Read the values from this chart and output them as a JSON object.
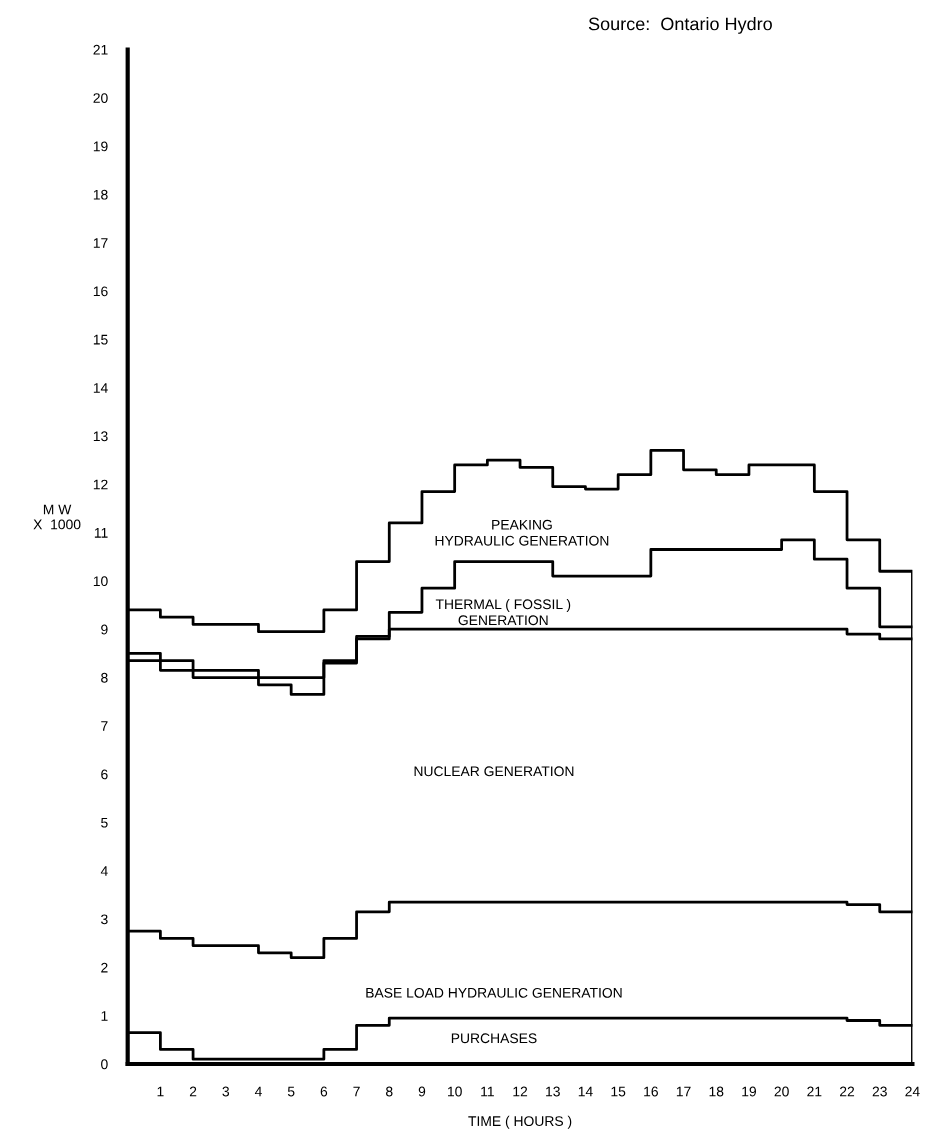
{
  "chart_data": {
    "type": "step",
    "xlabel": "TIME ( HOURS )",
    "ylabel": "M W\nX  1000",
    "x": [
      0,
      1,
      2,
      3,
      4,
      5,
      6,
      7,
      8,
      9,
      10,
      11,
      12,
      13,
      14,
      15,
      16,
      17,
      18,
      19,
      20,
      21,
      22,
      23,
      24
    ],
    "series": [
      {
        "color": "#000000",
        "values": [
          0.65,
          0.3,
          0.1,
          0.1,
          0.1,
          0.1,
          0.3,
          0.8,
          0.95,
          0.95,
          0.95,
          0.95,
          0.95,
          0.95,
          0.95,
          0.95,
          0.95,
          0.95,
          0.95,
          0.95,
          0.95,
          0.95,
          0.9,
          0.8,
          0.8
        ]
      },
      {
        "color": "#000000",
        "values": [
          2.75,
          2.6,
          2.45,
          2.45,
          2.3,
          2.2,
          2.6,
          3.15,
          3.35,
          3.35,
          3.35,
          3.35,
          3.35,
          3.35,
          3.35,
          3.35,
          3.35,
          3.35,
          3.35,
          3.35,
          3.35,
          3.35,
          3.3,
          3.15,
          3.15
        ]
      },
      {
        "color": "#000000",
        "values": [
          8.35,
          8.15,
          8.0,
          8.0,
          7.85,
          7.65,
          8.3,
          8.8,
          9.0,
          9.0,
          9.0,
          9.0,
          9.0,
          9.0,
          9.0,
          9.0,
          9.0,
          9.0,
          9.0,
          9.0,
          9.0,
          9.0,
          8.9,
          8.8,
          8.8
        ]
      },
      {
        "color": "#000000",
        "values": [
          8.5,
          8.35,
          8.15,
          8.15,
          8.0,
          8.0,
          8.35,
          8.85,
          9.35,
          9.85,
          10.4,
          10.4,
          10.4,
          10.1,
          10.1,
          10.1,
          10.65,
          10.65,
          10.65,
          10.65,
          10.85,
          10.45,
          9.85,
          9.05,
          9.05
        ]
      },
      {
        "color": "#000000",
        "x": [
          0,
          1,
          2,
          3,
          4,
          5,
          6,
          7,
          8,
          9,
          10,
          11,
          12,
          13,
          14,
          15,
          16,
          17,
          18,
          19,
          20,
          21,
          22,
          23,
          24,
          24
        ],
        "values": [
          9.4,
          9.25,
          9.1,
          9.1,
          8.95,
          8.95,
          9.4,
          10.4,
          11.2,
          11.85,
          12.4,
          12.5,
          12.35,
          11.95,
          11.9,
          12.2,
          12.7,
          12.3,
          12.2,
          12.4,
          12.4,
          11.85,
          10.85,
          10.2,
          10.2,
          0
        ]
      }
    ],
    "xlim": [
      0,
      24
    ],
    "ylim": [
      0,
      21
    ],
    "xticks": [
      1,
      2,
      3,
      4,
      5,
      6,
      7,
      8,
      9,
      10,
      11,
      12,
      13,
      14,
      15,
      16,
      17,
      18,
      19,
      20,
      21,
      22,
      23,
      24
    ],
    "yticks": [
      0,
      1,
      2,
      3,
      4,
      5,
      6,
      7,
      8,
      9,
      10,
      11,
      12,
      13,
      14,
      15,
      16,
      17,
      18,
      19,
      20,
      21
    ],
    "grid": false,
    "line_style": "solid",
    "annotations": [
      "Source:  Ontario Hydro",
      "PEAKING\nHYDRAULIC GENERATION",
      "THERMAL ( FOSSIL )\nGENERATION",
      "NUCLEAR GENERATION",
      "BASE LOAD HYDRAULIC GENERATION",
      "PURCHASES"
    ]
  }
}
